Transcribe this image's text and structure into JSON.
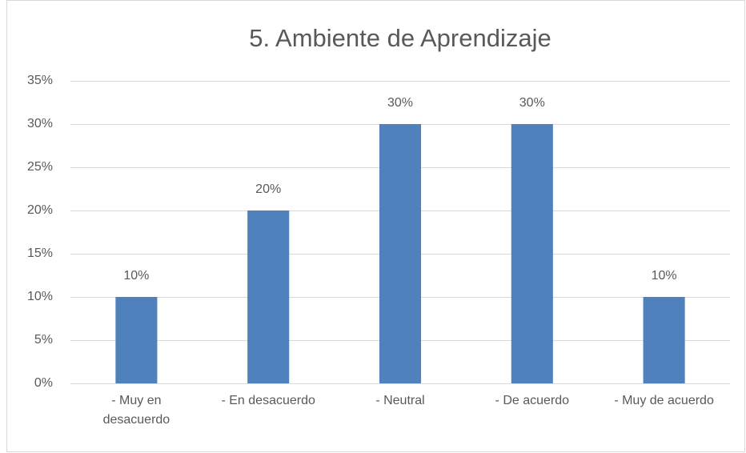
{
  "chart_data": {
    "type": "bar",
    "title": "5. Ambiente de Aprendizaje",
    "categories": [
      "- Muy en desacuerdo",
      "- En desacuerdo",
      "- Neutral",
      "- De acuerdo",
      "- Muy de acuerdo"
    ],
    "values": [
      10,
      20,
      30,
      30,
      10
    ],
    "value_labels": [
      "10%",
      "20%",
      "30%",
      "30%",
      "10%"
    ],
    "color": "#4f81bd",
    "ylim": [
      0,
      35
    ],
    "yticks": [
      {
        "value": 0,
        "label": "0%"
      },
      {
        "value": 5,
        "label": "5%"
      },
      {
        "value": 10,
        "label": "10%"
      },
      {
        "value": 15,
        "label": "15%"
      },
      {
        "value": 20,
        "label": "20%"
      },
      {
        "value": 25,
        "label": "25%"
      },
      {
        "value": 30,
        "label": "30%"
      },
      {
        "value": 35,
        "label": "35%"
      }
    ],
    "grid": true
  }
}
